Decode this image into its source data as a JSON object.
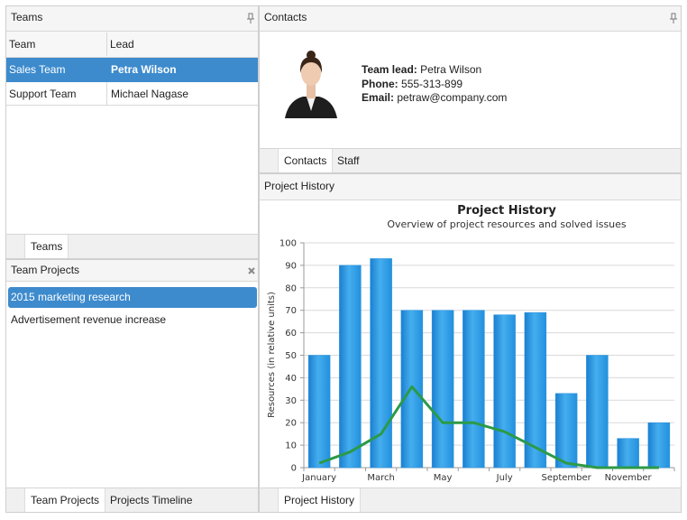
{
  "teams_panel": {
    "title": "Teams",
    "columns": [
      "Team",
      "Lead"
    ],
    "rows": [
      [
        "Sales Team",
        "Petra Wilson"
      ],
      [
        "Support Team",
        "Michael Nagase"
      ]
    ],
    "tab": "Teams"
  },
  "projects_panel": {
    "title": "Team Projects",
    "items": [
      "2015 marketing research",
      "Advertisement revenue increase"
    ],
    "tabs": [
      "Team Projects",
      "Projects Timeline"
    ]
  },
  "contacts_panel": {
    "title": "Contacts",
    "fields": [
      {
        "label": "Team lead:",
        "value": "Petra Wilson"
      },
      {
        "label": "Phone:",
        "value": "555-313-899"
      },
      {
        "label": "Email:",
        "value": "petraw@company.com"
      }
    ],
    "tabs": [
      "Contacts",
      "Staff"
    ]
  },
  "history_panel": {
    "title": "Project History",
    "tab": "Project History"
  },
  "chart_data": {
    "type": "bar",
    "title": "Project History",
    "subtitle": "Overview of project resources and solved issues",
    "y_label": "Resources (in relative units)",
    "categories": [
      "January",
      null,
      "March",
      null,
      "May",
      null,
      "July",
      null,
      "September",
      null,
      "November",
      null
    ],
    "series": [
      {
        "type": "bar",
        "color": "#2a92e0",
        "values": [
          50,
          90,
          93,
          70,
          70,
          70,
          68,
          69,
          33,
          50,
          13,
          20
        ]
      },
      {
        "type": "line",
        "color": "#2b9a48",
        "values": [
          2,
          7,
          15,
          36,
          20,
          20,
          16,
          9,
          2,
          0,
          0,
          0
        ]
      }
    ],
    "ylim": [
      0,
      100
    ],
    "yticks": [
      0,
      10,
      20,
      30,
      40,
      50,
      60,
      70,
      80,
      90,
      100
    ],
    "grid": true
  }
}
